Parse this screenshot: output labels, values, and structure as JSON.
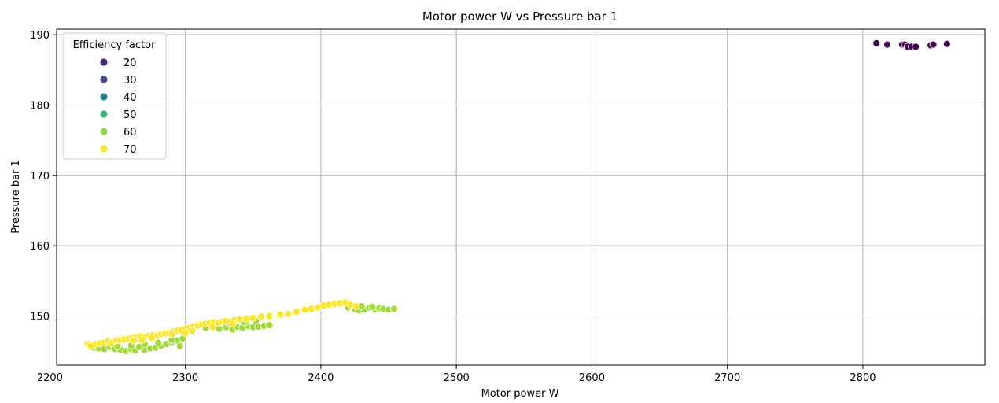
{
  "chart_data": {
    "type": "scatter",
    "title": "Motor power W vs Pressure bar 1",
    "xlabel": "Motor power W",
    "ylabel": "Pressure bar 1",
    "xlim": [
      2205,
      2890
    ],
    "ylim": [
      143,
      190.8
    ],
    "xticks": [
      2200,
      2300,
      2400,
      2500,
      2600,
      2700,
      2800
    ],
    "yticks": [
      150,
      160,
      170,
      180,
      190
    ],
    "grid": true,
    "hue_label": "Efficiency factor",
    "legend": {
      "title": "Efficiency factor",
      "placement": "top-left",
      "entries": [
        {
          "label": "20",
          "color": "#482878"
        },
        {
          "label": "30",
          "color": "#3e4989"
        },
        {
          "label": "40",
          "color": "#26828e"
        },
        {
          "label": "50",
          "color": "#35b779"
        },
        {
          "label": "60",
          "color": "#8fd744"
        },
        {
          "label": "70",
          "color": "#fde725"
        }
      ]
    },
    "series": [
      {
        "color": "#440154",
        "points": [
          [
            2810,
            188.8
          ],
          [
            2818,
            188.6
          ],
          [
            2829,
            188.6
          ],
          [
            2831,
            188.6
          ],
          [
            2833,
            188.3
          ],
          [
            2836,
            188.3
          ],
          [
            2839,
            188.3
          ],
          [
            2850,
            188.5
          ],
          [
            2852,
            188.6
          ],
          [
            2862,
            188.7
          ]
        ]
      },
      {
        "color": "#a0da39",
        "points": [
          [
            2232,
            145.5
          ],
          [
            2236,
            145.4
          ],
          [
            2240,
            145.3
          ],
          [
            2244,
            145.6
          ],
          [
            2248,
            145.3
          ],
          [
            2252,
            145.2
          ],
          [
            2256,
            145.0
          ],
          [
            2260,
            145.3
          ],
          [
            2263,
            145.1
          ],
          [
            2266,
            145.6
          ],
          [
            2270,
            145.2
          ],
          [
            2274,
            145.4
          ],
          [
            2278,
            145.5
          ],
          [
            2282,
            145.8
          ],
          [
            2286,
            146.0
          ],
          [
            2290,
            146.3
          ],
          [
            2294,
            146.5
          ],
          [
            2296,
            145.7
          ],
          [
            2298,
            146.8
          ],
          [
            2260,
            145.8
          ],
          [
            2270,
            146.0
          ],
          [
            2250,
            145.7
          ],
          [
            2280,
            146.2
          ],
          [
            2290,
            146.6
          ],
          [
            2315,
            148.3
          ],
          [
            2320,
            148.6
          ],
          [
            2325,
            148.2
          ],
          [
            2330,
            148.4
          ],
          [
            2335,
            148.1
          ],
          [
            2338,
            148.5
          ],
          [
            2342,
            148.3
          ],
          [
            2346,
            148.6
          ],
          [
            2350,
            148.4
          ],
          [
            2354,
            148.5
          ],
          [
            2358,
            148.6
          ],
          [
            2362,
            148.7
          ],
          [
            2332,
            149.0
          ],
          [
            2344,
            149.1
          ],
          [
            2352,
            149.3
          ],
          [
            2362,
            149.8
          ],
          [
            2420,
            151.2
          ],
          [
            2425,
            151.0
          ],
          [
            2428,
            150.8
          ],
          [
            2432,
            150.9
          ],
          [
            2436,
            151.2
          ],
          [
            2440,
            150.9
          ],
          [
            2443,
            151.1
          ],
          [
            2446,
            151.0
          ],
          [
            2450,
            150.9
          ],
          [
            2454,
            151.0
          ],
          [
            2438,
            151.3
          ],
          [
            2430,
            151.4
          ]
        ]
      },
      {
        "color": "#fde725",
        "points": [
          [
            2228,
            146.0
          ],
          [
            2231,
            145.8
          ],
          [
            2234,
            146.0
          ],
          [
            2237,
            146.1
          ],
          [
            2240,
            146.2
          ],
          [
            2243,
            146.4
          ],
          [
            2246,
            146.3
          ],
          [
            2249,
            146.5
          ],
          [
            2252,
            146.6
          ],
          [
            2255,
            146.7
          ],
          [
            2258,
            146.8
          ],
          [
            2261,
            146.9
          ],
          [
            2264,
            147.0
          ],
          [
            2267,
            147.1
          ],
          [
            2270,
            147.0
          ],
          [
            2273,
            147.2
          ],
          [
            2276,
            147.3
          ],
          [
            2279,
            147.2
          ],
          [
            2282,
            147.4
          ],
          [
            2285,
            147.5
          ],
          [
            2288,
            147.6
          ],
          [
            2291,
            147.8
          ],
          [
            2294,
            147.9
          ],
          [
            2297,
            148.0
          ],
          [
            2300,
            148.2
          ],
          [
            2303,
            148.3
          ],
          [
            2306,
            148.5
          ],
          [
            2309,
            148.6
          ],
          [
            2312,
            148.8
          ],
          [
            2315,
            148.9
          ],
          [
            2318,
            149.0
          ],
          [
            2321,
            149.1
          ],
          [
            2324,
            149.0
          ],
          [
            2327,
            149.2
          ],
          [
            2330,
            149.3
          ],
          [
            2333,
            149.2
          ],
          [
            2336,
            149.4
          ],
          [
            2340,
            149.5
          ],
          [
            2345,
            149.6
          ],
          [
            2350,
            149.7
          ],
          [
            2356,
            149.9
          ],
          [
            2362,
            150.0
          ],
          [
            2370,
            150.2
          ],
          [
            2376,
            150.3
          ],
          [
            2382,
            150.6
          ],
          [
            2388,
            150.9
          ],
          [
            2393,
            151.0
          ],
          [
            2398,
            151.2
          ],
          [
            2402,
            151.5
          ],
          [
            2406,
            151.6
          ],
          [
            2410,
            151.7
          ],
          [
            2414,
            151.8
          ],
          [
            2418,
            151.9
          ],
          [
            2422,
            151.6
          ],
          [
            2426,
            151.4
          ],
          [
            2245,
            146.1
          ],
          [
            2262,
            146.5
          ],
          [
            2275,
            146.9
          ],
          [
            2290,
            147.4
          ],
          [
            2305,
            147.9
          ],
          [
            2320,
            148.4
          ],
          [
            2335,
            148.9
          ],
          [
            2230,
            145.7
          ],
          [
            2268,
            146.6
          ],
          [
            2300,
            147.6
          ]
        ]
      }
    ]
  }
}
